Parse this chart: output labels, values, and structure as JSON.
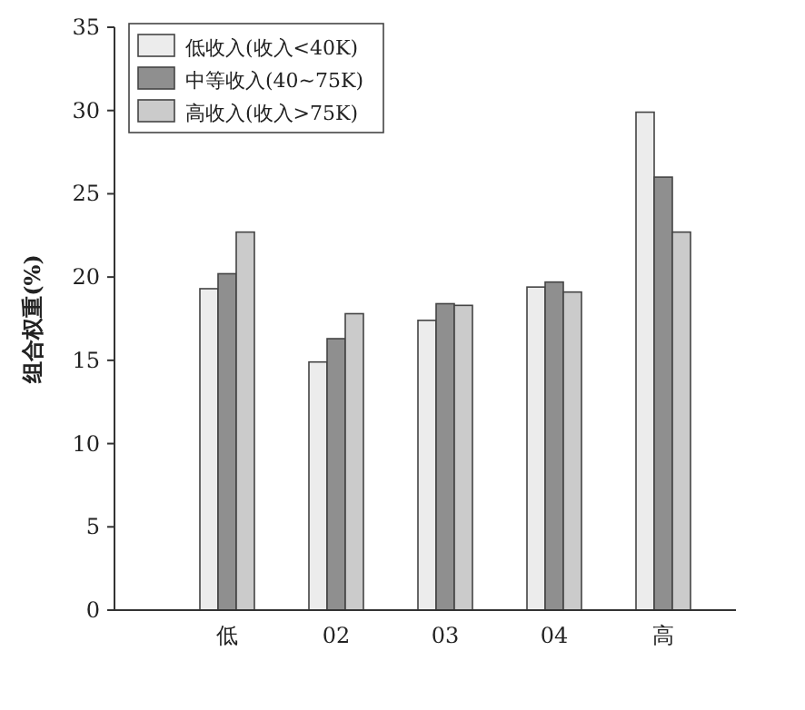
{
  "chart_data": {
    "type": "bar",
    "ylabel": "组合权重(%)",
    "categories": [
      "低",
      "02",
      "03",
      "04",
      "高"
    ],
    "series": [
      {
        "name": "低收入(收入<40K)",
        "color": "#ececec",
        "values": [
          19.3,
          14.9,
          17.4,
          19.4,
          29.9
        ]
      },
      {
        "name": "中等收入(40~75K)",
        "color": "#8f8f8f",
        "values": [
          20.2,
          16.3,
          18.4,
          19.7,
          26.0
        ]
      },
      {
        "name": "高收入(收入>75K)",
        "color": "#cbcbcb",
        "values": [
          22.7,
          17.8,
          18.3,
          19.1,
          22.7
        ]
      }
    ],
    "ylim": [
      0,
      35
    ],
    "yticks": [
      0,
      5,
      10,
      15,
      20,
      25,
      30,
      35
    ],
    "legend": "top left",
    "grid": false
  }
}
